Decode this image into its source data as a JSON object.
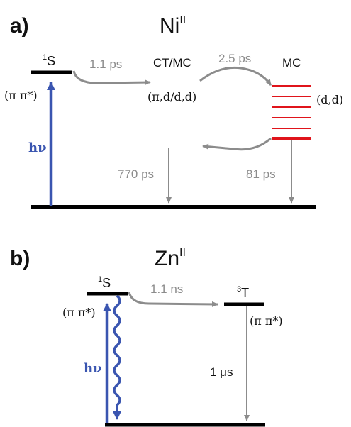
{
  "colors": {
    "level": "#000000",
    "mc": "#e0141b",
    "arrow": "#8c8c8c",
    "excite": "#3a55b0",
    "label_gray": "#8c8c8c",
    "text": "#111111"
  },
  "panel_a": {
    "tag": "a)",
    "metal": "Ni",
    "oxidation": "II",
    "s1_label_sup": "1",
    "s1_label": "S",
    "s1_config": "(π π*)",
    "excitation": "hν",
    "t1": "1.1 ps",
    "ctmc_label": "CT/MC",
    "ctmc_config": "(π,d/d,d)",
    "t2": "2.5 ps",
    "mc_label": "MC",
    "mc_config": "(d,d)",
    "t3": "770 ps",
    "t4": "81 ps"
  },
  "panel_b": {
    "tag": "b)",
    "metal": "Zn",
    "oxidation": "II",
    "s1_label_sup": "1",
    "s1_label": "S",
    "s1_config": "(π π*)",
    "excitation": "hν",
    "t1": "1.1 ns",
    "t_label_sup": "3",
    "t_label": "T",
    "t_config": "(π π*)",
    "t2": "1 μs"
  }
}
